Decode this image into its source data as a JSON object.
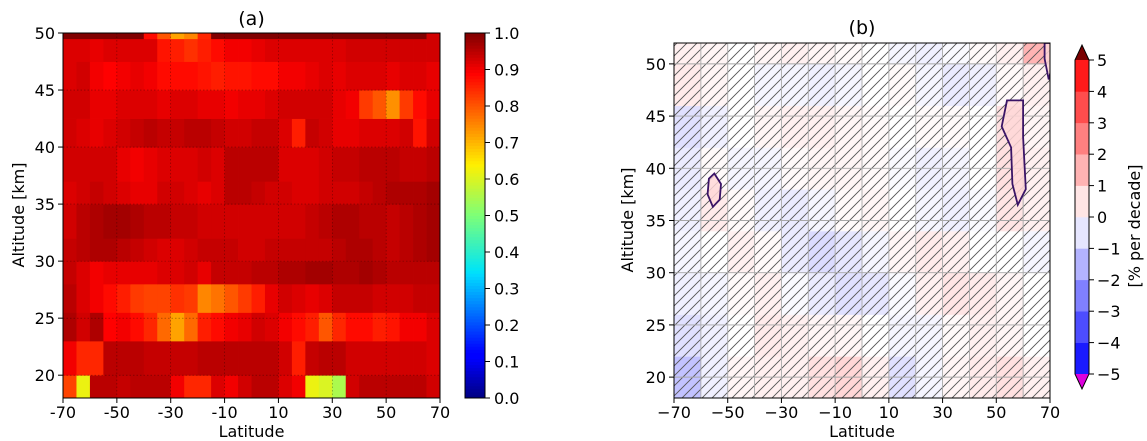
{
  "chart_data": [
    {
      "type": "heatmap",
      "title": "(a)",
      "xlabel": "Latitude",
      "ylabel": "Altitude [km]",
      "xlim": [
        -70,
        70
      ],
      "ylim": [
        18,
        50
      ],
      "xticks": [
        -70,
        -50,
        -30,
        -10,
        10,
        30,
        50,
        70
      ],
      "xtick_labels": [
        "-70",
        "-50",
        "-30",
        "-10",
        "10",
        "30",
        "50",
        "70"
      ],
      "yticks": [
        20,
        25,
        30,
        35,
        40,
        45,
        50
      ],
      "ytick_labels": [
        "20",
        "25",
        "30",
        "35",
        "40",
        "45",
        "50"
      ],
      "grid": true,
      "colormap": "jet",
      "colorbar": {
        "min": 0.0,
        "max": 1.0,
        "ticks": [
          0.0,
          0.1,
          0.2,
          0.3,
          0.4,
          0.5,
          0.6,
          0.7,
          0.8,
          0.9,
          1.0
        ],
        "tick_labels": [
          "0.0",
          "0.1",
          "0.2",
          "0.3",
          "0.4",
          "0.5",
          "0.6",
          "0.7",
          "0.8",
          "0.9",
          "1.0"
        ]
      },
      "x_edges": [
        -70,
        -65,
        -60,
        -55,
        -50,
        -45,
        -40,
        -35,
        -30,
        -25,
        -20,
        -15,
        -10,
        -5,
        0,
        5,
        10,
        15,
        20,
        25,
        30,
        35,
        40,
        45,
        50,
        55,
        60,
        65,
        70
      ],
      "y_edges": [
        18,
        20,
        23,
        25.5,
        28,
        30,
        32,
        35,
        37,
        40,
        42.5,
        45,
        47.5,
        49.5,
        50
      ],
      "values": [
        [
          0.82,
          0.62,
          0.95,
          0.95,
          0.94,
          0.95,
          0.95,
          0.95,
          0.9,
          0.85,
          0.85,
          0.92,
          0.9,
          0.93,
          0.95,
          0.95,
          0.92,
          0.9,
          0.62,
          0.6,
          0.55,
          0.93,
          0.95,
          0.95,
          0.95,
          0.95,
          0.95,
          0.93
        ],
        [
          0.9,
          0.85,
          0.85,
          0.95,
          0.95,
          0.95,
          0.94,
          0.94,
          0.94,
          0.94,
          0.95,
          0.95,
          0.95,
          0.95,
          0.95,
          0.95,
          0.93,
          0.86,
          0.94,
          0.95,
          0.95,
          0.93,
          0.93,
          0.93,
          0.93,
          0.93,
          0.93,
          0.92
        ],
        [
          0.96,
          0.93,
          0.96,
          0.89,
          0.9,
          0.88,
          0.85,
          0.78,
          0.72,
          0.78,
          0.86,
          0.88,
          0.9,
          0.91,
          0.93,
          0.92,
          0.9,
          0.88,
          0.86,
          0.8,
          0.85,
          0.88,
          0.88,
          0.86,
          0.87,
          0.9,
          0.9,
          0.92
        ],
        [
          0.95,
          0.92,
          0.9,
          0.88,
          0.86,
          0.83,
          0.82,
          0.82,
          0.84,
          0.83,
          0.75,
          0.77,
          0.8,
          0.83,
          0.86,
          0.91,
          0.93,
          0.92,
          0.91,
          0.92,
          0.94,
          0.94,
          0.94,
          0.93,
          0.93,
          0.93,
          0.94,
          0.94
        ],
        [
          0.94,
          0.92,
          0.9,
          0.91,
          0.91,
          0.91,
          0.91,
          0.92,
          0.92,
          0.93,
          0.91,
          0.94,
          0.94,
          0.94,
          0.95,
          0.95,
          0.96,
          0.96,
          0.97,
          0.97,
          0.96,
          0.96,
          0.97,
          0.96,
          0.95,
          0.95,
          0.95,
          0.95
        ],
        [
          0.94,
          0.95,
          0.96,
          0.96,
          0.95,
          0.94,
          0.93,
          0.92,
          0.92,
          0.93,
          0.94,
          0.94,
          0.94,
          0.93,
          0.93,
          0.94,
          0.94,
          0.94,
          0.94,
          0.94,
          0.95,
          0.96,
          0.96,
          0.95,
          0.94,
          0.95,
          0.96,
          0.97
        ],
        [
          0.93,
          0.95,
          0.96,
          0.97,
          0.97,
          0.96,
          0.95,
          0.95,
          0.94,
          0.94,
          0.93,
          0.93,
          0.93,
          0.93,
          0.93,
          0.93,
          0.93,
          0.93,
          0.94,
          0.95,
          0.96,
          0.96,
          0.95,
          0.95,
          0.94,
          0.95,
          0.96,
          0.97
        ],
        [
          0.92,
          0.93,
          0.94,
          0.93,
          0.92,
          0.91,
          0.91,
          0.93,
          0.93,
          0.92,
          0.91,
          0.92,
          0.95,
          0.95,
          0.94,
          0.93,
          0.93,
          0.92,
          0.92,
          0.93,
          0.93,
          0.93,
          0.94,
          0.95,
          0.96,
          0.96,
          0.96,
          0.97
        ],
        [
          0.93,
          0.93,
          0.93,
          0.93,
          0.91,
          0.9,
          0.91,
          0.92,
          0.92,
          0.92,
          0.93,
          0.92,
          0.95,
          0.95,
          0.95,
          0.95,
          0.92,
          0.92,
          0.92,
          0.93,
          0.94,
          0.94,
          0.95,
          0.95,
          0.95,
          0.94,
          0.94,
          0.95
        ],
        [
          0.93,
          0.92,
          0.91,
          0.92,
          0.93,
          0.94,
          0.95,
          0.94,
          0.94,
          0.95,
          0.95,
          0.94,
          0.93,
          0.93,
          0.94,
          0.94,
          0.92,
          0.86,
          0.94,
          0.93,
          0.91,
          0.91,
          0.92,
          0.92,
          0.92,
          0.93,
          0.87,
          0.93
        ],
        [
          0.93,
          0.93,
          0.91,
          0.91,
          0.92,
          0.92,
          0.92,
          0.91,
          0.92,
          0.92,
          0.91,
          0.91,
          0.9,
          0.91,
          0.91,
          0.92,
          0.93,
          0.93,
          0.93,
          0.93,
          0.91,
          0.9,
          0.83,
          0.8,
          0.74,
          0.83,
          0.88,
          0.91
        ],
        [
          0.92,
          0.93,
          0.9,
          0.89,
          0.9,
          0.91,
          0.9,
          0.88,
          0.88,
          0.88,
          0.87,
          0.86,
          0.87,
          0.87,
          0.88,
          0.88,
          0.9,
          0.9,
          0.91,
          0.92,
          0.91,
          0.92,
          0.92,
          0.92,
          0.91,
          0.92,
          0.92,
          0.91
        ],
        [
          0.92,
          0.92,
          0.91,
          0.92,
          0.92,
          0.92,
          0.92,
          0.87,
          0.86,
          0.84,
          0.86,
          0.88,
          0.9,
          0.9,
          0.91,
          0.92,
          0.92,
          0.92,
          0.92,
          0.92,
          0.92,
          0.93,
          0.93,
          0.93,
          0.93,
          0.93,
          0.93,
          0.93
        ],
        [
          1.0,
          1.0,
          1.0,
          1.0,
          1.0,
          1.0,
          0.88,
          0.8,
          0.72,
          0.75,
          0.85,
          1.0,
          1.0,
          1.0,
          1.0,
          1.0,
          1.0,
          1.0,
          1.0,
          1.0,
          1.0,
          1.0,
          1.0,
          1.0,
          1.0,
          1.0,
          1.0,
          0.93
        ]
      ]
    },
    {
      "type": "heatmap",
      "title": "(b)",
      "xlabel": "Latitude",
      "ylabel": "Altitude [km]",
      "xlim": [
        -70,
        70
      ],
      "ylim": [
        18,
        52
      ],
      "xticks": [
        -70,
        -50,
        -30,
        -10,
        10,
        30,
        50,
        70
      ],
      "xtick_labels": [
        "−70",
        "−50",
        "−30",
        "−10",
        "10",
        "30",
        "50",
        "70"
      ],
      "yticks": [
        20,
        25,
        30,
        35,
        40,
        45,
        50
      ],
      "ytick_labels": [
        "20",
        "25",
        "30",
        "35",
        "40",
        "45",
        "50"
      ],
      "grid": true,
      "colormap": "bwr",
      "hatch": "diagonal, over non-significant regions",
      "colorbar": {
        "min": -5,
        "max": 5,
        "extend": "both",
        "label": "[% per decade]",
        "ticks": [
          5,
          4,
          3,
          2,
          1,
          0,
          -1,
          -2,
          -3,
          -4,
          -5
        ],
        "tick_labels": [
          "5",
          "4",
          "3",
          "2",
          "1",
          "0",
          "−1",
          "−2",
          "−3",
          "−4",
          "−5"
        ],
        "under_color": "#dd00dd",
        "over_color": "#7a0000"
      },
      "x_edges": [
        -70,
        -60,
        -50,
        -40,
        -30,
        -20,
        -10,
        0,
        10,
        20,
        30,
        40,
        50,
        60,
        70
      ],
      "y_edges": [
        18,
        22,
        26,
        30,
        34,
        38,
        42,
        46,
        50,
        52
      ],
      "values": [
        [
          -1.2,
          -0.3,
          0.2,
          0.3,
          0.3,
          0.6,
          0.8,
          0.3,
          -0.6,
          -0.2,
          0.2,
          0.4,
          0.6,
          0.3
        ],
        [
          -0.6,
          -0.3,
          0.0,
          0.4,
          0.3,
          0.2,
          0.2,
          0.0,
          -0.2,
          -0.2,
          0.1,
          0.3,
          0.2,
          0.0
        ],
        [
          -0.3,
          -0.2,
          0.1,
          0.3,
          -0.1,
          -0.4,
          -0.6,
          -0.5,
          -0.1,
          0.3,
          0.5,
          0.4,
          0.2,
          0.0
        ],
        [
          -0.2,
          0.0,
          0.3,
          0.1,
          -0.4,
          -0.7,
          -0.5,
          -0.2,
          0.2,
          0.4,
          0.3,
          0.0,
          0.0,
          -0.2
        ],
        [
          -0.3,
          0.4,
          0.1,
          -0.3,
          -0.4,
          -0.2,
          0.1,
          0.2,
          0.0,
          -0.2,
          -0.3,
          -0.1,
          0.5,
          0.3
        ],
        [
          -0.4,
          0.1,
          -0.2,
          -0.2,
          0.1,
          0.2,
          0.2,
          0.1,
          -0.1,
          -0.3,
          -0.2,
          0.0,
          0.6,
          0.3
        ],
        [
          -0.6,
          -0.3,
          0.0,
          0.2,
          0.3,
          0.3,
          0.2,
          0.1,
          0.0,
          0.1,
          0.1,
          0.0,
          0.6,
          0.2
        ],
        [
          0.4,
          0.2,
          0.0,
          -0.2,
          -0.2,
          -0.3,
          -0.2,
          0.0,
          0.1,
          -0.2,
          -0.4,
          -0.3,
          0.1,
          0.3
        ],
        [
          0.3,
          0.2,
          0.0,
          0.2,
          0.3,
          0.2,
          0.1,
          0.0,
          -0.2,
          -0.3,
          -0.1,
          0.1,
          0.3,
          1.5
        ]
      ],
      "significance_contours": [
        {
          "points": [
            [
              -55,
              39.5
            ],
            [
              -52.5,
              38.5
            ],
            [
              -53,
              37
            ],
            [
              -55.5,
              36.3
            ],
            [
              -57.5,
              37.5
            ],
            [
              -57,
              39
            ],
            [
              -55,
              39.5
            ]
          ]
        },
        {
          "points": [
            [
              54,
              46.5
            ],
            [
              60,
              46.5
            ],
            [
              60,
              43
            ],
            [
              61,
              38
            ],
            [
              58,
              36.5
            ],
            [
              56,
              38.5
            ],
            [
              55.5,
              42
            ],
            [
              52,
              44
            ],
            [
              54,
              46.5
            ]
          ]
        },
        {
          "points": [
            [
              68,
              52
            ],
            [
              72,
              52
            ],
            [
              71,
              50
            ],
            [
              69.5,
              48.5
            ],
            [
              68,
              50.5
            ],
            [
              68,
              52
            ]
          ]
        }
      ]
    }
  ]
}
